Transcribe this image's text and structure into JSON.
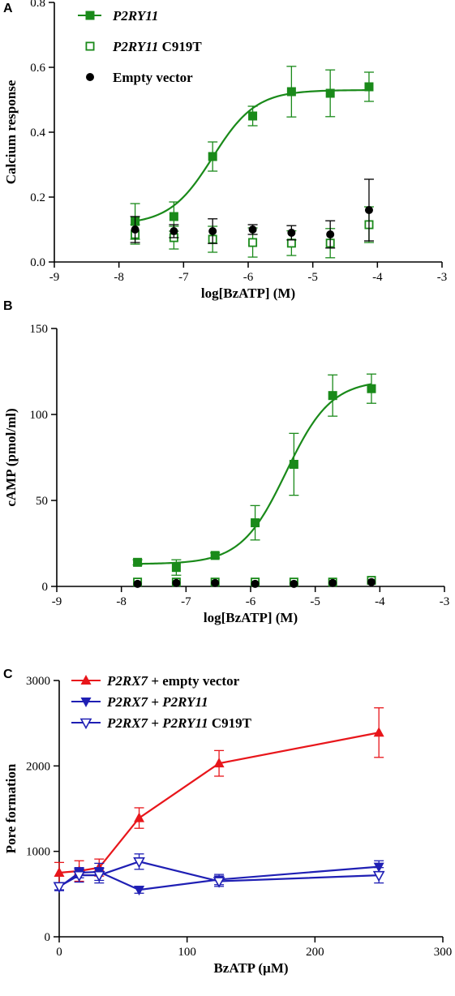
{
  "chart_data": [
    {
      "panel": "A",
      "type": "scatter",
      "xlabel": "log[BzATP] (M)",
      "ylabel": "Calcium response",
      "xlim": [
        -9,
        -3
      ],
      "ylim": [
        0,
        0.8
      ],
      "xticks": [
        -9,
        -8,
        -7,
        -6,
        -5,
        -4,
        -3
      ],
      "yticks": [
        0.0,
        0.2,
        0.4,
        0.6,
        0.8
      ],
      "ytick_labels": [
        "0.0",
        "0.2",
        "0.4",
        "0.6",
        "0.8"
      ],
      "x_values": [
        -7.75,
        -7.15,
        -6.55,
        -5.93,
        -5.33,
        -4.73,
        -4.13
      ],
      "series": [
        {
          "legend_label": "P2RY11",
          "legend_parts": [
            {
              "text": "P2RY11",
              "italic": true
            }
          ],
          "color": "#1a8a1a",
          "marker": "filled-square",
          "y": [
            0.125,
            0.14,
            0.325,
            0.45,
            0.525,
            0.52,
            0.54
          ],
          "err": [
            0.055,
            0.045,
            0.045,
            0.03,
            0.078,
            0.072,
            0.045
          ],
          "fit": {
            "bottom": 0.115,
            "top": 0.53,
            "logEC50": -6.55,
            "hill": 1.3
          }
        },
        {
          "legend_label": "P2RY11 C919T",
          "legend_parts": [
            {
              "text": "P2RY11",
              "italic": true
            },
            {
              "text": " C919T",
              "italic": false
            }
          ],
          "color": "#1a8a1a",
          "marker": "open-square",
          "y": [
            0.085,
            0.075,
            0.07,
            0.06,
            0.058,
            0.058,
            0.115
          ],
          "err": [
            0.03,
            0.035,
            0.04,
            0.045,
            0.038,
            0.045,
            0.055
          ]
        },
        {
          "legend_label": "Empty vector",
          "legend_parts": [
            {
              "text": "Empty vector",
              "italic": false
            }
          ],
          "color": "#000000",
          "marker": "filled-circle",
          "y": [
            0.1,
            0.095,
            0.095,
            0.1,
            0.09,
            0.085,
            0.16
          ],
          "err": [
            0.04,
            0.02,
            0.038,
            0.015,
            0.022,
            0.042,
            0.095
          ]
        }
      ]
    },
    {
      "panel": "B",
      "type": "scatter",
      "xlabel": "log[BzATP] (M)",
      "ylabel": "cAMP (pmol/ml)",
      "xlim": [
        -9,
        -3
      ],
      "ylim": [
        0,
        150
      ],
      "xticks": [
        -9,
        -8,
        -7,
        -6,
        -5,
        -4,
        -3
      ],
      "yticks": [
        0,
        50,
        100,
        150
      ],
      "ytick_labels": [
        "0",
        "50",
        "100",
        "150"
      ],
      "x_values": [
        -7.75,
        -7.15,
        -6.55,
        -5.93,
        -5.33,
        -4.73,
        -4.13
      ],
      "series": [
        {
          "name": "P2RY11",
          "color": "#1a8a1a",
          "marker": "filled-square",
          "y": [
            14,
            11,
            18,
            37,
            71,
            111,
            115
          ],
          "err": [
            1.5,
            4.5,
            1.5,
            10,
            18,
            12,
            8.5
          ],
          "fit": {
            "bottom": 13,
            "top": 120,
            "logEC50": -5.45,
            "hill": 1.25
          }
        },
        {
          "name": "P2RY11 C919T",
          "color": "#1a8a1a",
          "marker": "open-square",
          "y": [
            2.5,
            2.5,
            2.5,
            2.5,
            2.5,
            2.5,
            3.5
          ],
          "err": [
            0,
            0,
            0,
            0,
            0,
            0,
            0
          ]
        },
        {
          "name": "Empty vector",
          "color": "#000000",
          "marker": "filled-circle",
          "y": [
            1.5,
            2,
            2,
            1.5,
            1.5,
            2,
            2.5
          ],
          "err": [
            0,
            0,
            0,
            0,
            0,
            0,
            0
          ]
        }
      ]
    },
    {
      "panel": "C",
      "type": "line",
      "xlabel": "BzATP (µM)",
      "ylabel": "Pore formation",
      "xlim": [
        0,
        300
      ],
      "ylim": [
        0,
        3000
      ],
      "xticks": [
        0,
        100,
        200,
        300
      ],
      "yticks": [
        0,
        1000,
        2000,
        3000
      ],
      "ytick_labels": [
        "0",
        "1000",
        "2000",
        "3000"
      ],
      "series": [
        {
          "legend_label": "P2RX7 + empty vector",
          "legend_parts": [
            {
              "text": "P2RX7",
              "italic": true
            },
            {
              "text": " + empty vector",
              "italic": false
            }
          ],
          "color": "#e8161b",
          "marker": "filled-triangle-up",
          "x": [
            0,
            15.6,
            31.25,
            62.5,
            125,
            250
          ],
          "y": [
            750,
            770,
            810,
            1390,
            2030,
            2390
          ],
          "err": [
            120,
            120,
            100,
            120,
            150,
            290
          ]
        },
        {
          "legend_label": "P2RX7 + P2RY11",
          "legend_parts": [
            {
              "text": "P2RX7",
              "italic": true
            },
            {
              "text": " + ",
              "italic": false
            },
            {
              "text": "P2RY11",
              "italic": true
            }
          ],
          "color": "#1f1fb4",
          "marker": "filled-triangle-down",
          "x": [
            0,
            15.6,
            31.25,
            62.5,
            125,
            250
          ],
          "y": [
            580,
            750,
            760,
            550,
            670,
            820
          ],
          "err": [
            40,
            60,
            100,
            40,
            60,
            70
          ]
        },
        {
          "legend_label": "P2RX7 + P2RY11 C919T",
          "legend_parts": [
            {
              "text": "P2RX7",
              "italic": true
            },
            {
              "text": " + ",
              "italic": false
            },
            {
              "text": "P2RY11",
              "italic": true
            },
            {
              "text": " C919T",
              "italic": false
            }
          ],
          "color": "#1f1fb4",
          "marker": "open-triangle-down",
          "x": [
            0,
            15.6,
            31.25,
            62.5,
            125,
            250
          ],
          "y": [
            590,
            720,
            720,
            880,
            650,
            720
          ],
          "err": [
            40,
            80,
            90,
            90,
            60,
            90
          ]
        }
      ]
    }
  ]
}
